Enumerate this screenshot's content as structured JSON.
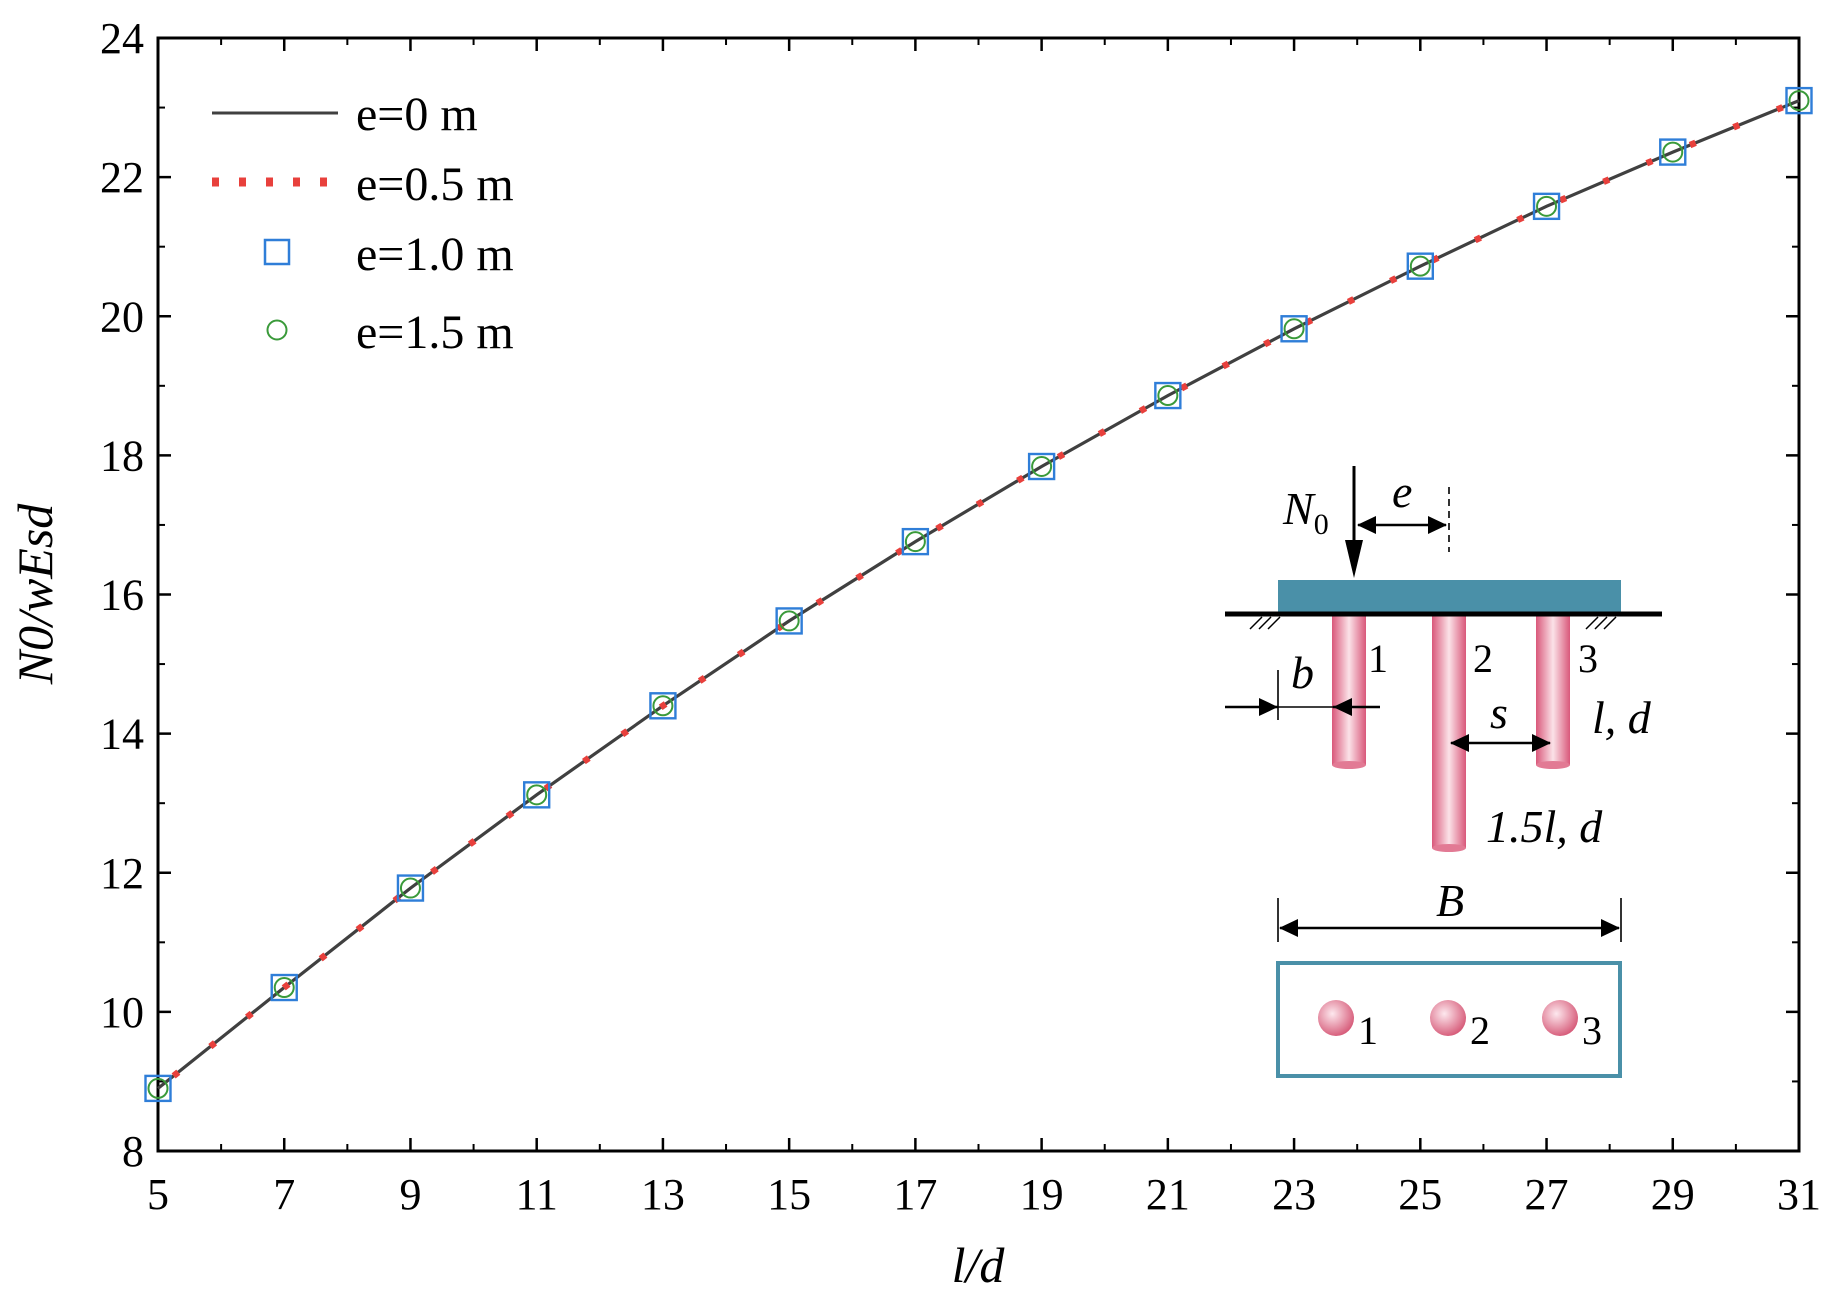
{
  "chart_data": {
    "type": "line",
    "xlabel": "l/d",
    "ylabel": "N0/wEsd",
    "xlim": [
      5,
      31
    ],
    "ylim": [
      8,
      24
    ],
    "x_ticks": [
      5,
      7,
      9,
      11,
      13,
      15,
      17,
      19,
      21,
      23,
      25,
      27,
      29,
      31
    ],
    "y_ticks": [
      8,
      10,
      12,
      14,
      16,
      18,
      20,
      22,
      24
    ],
    "grid": false,
    "legend": {
      "position": "top-left"
    },
    "series": [
      {
        "name": "e=0 m",
        "style": "solid-line",
        "color": "#404040",
        "x": [
          5,
          7,
          9,
          11,
          13,
          15,
          17,
          19,
          21,
          23,
          25,
          27,
          29,
          31
        ],
        "y": [
          8.9,
          10.35,
          11.78,
          13.12,
          14.4,
          15.62,
          16.76,
          17.84,
          18.86,
          19.82,
          20.72,
          21.58,
          22.36,
          23.1
        ]
      },
      {
        "name": "e=0.5 m",
        "style": "dotted-line",
        "color": "#e8403c",
        "x": [
          5,
          7,
          9,
          11,
          13,
          15,
          17,
          19,
          21,
          23,
          25,
          27,
          29,
          31
        ],
        "y": [
          8.9,
          10.35,
          11.78,
          13.12,
          14.4,
          15.62,
          16.76,
          17.84,
          18.86,
          19.82,
          20.72,
          21.58,
          22.36,
          23.1
        ]
      },
      {
        "name": "e=1.0 m",
        "style": "open-square",
        "color": "#2f7ed8",
        "x": [
          5,
          7,
          9,
          11,
          13,
          15,
          17,
          19,
          21,
          23,
          25,
          27,
          29,
          31
        ],
        "y": [
          8.9,
          10.35,
          11.78,
          13.12,
          14.4,
          15.62,
          16.76,
          17.84,
          18.86,
          19.82,
          20.72,
          21.58,
          22.36,
          23.1
        ]
      },
      {
        "name": "e=1.5 m",
        "style": "open-circle",
        "color": "#3a9a3a",
        "x": [
          5,
          7,
          9,
          11,
          13,
          15,
          17,
          19,
          21,
          23,
          25,
          27,
          29,
          31
        ],
        "y": [
          8.9,
          10.35,
          11.78,
          13.12,
          14.4,
          15.62,
          16.76,
          17.84,
          18.86,
          19.82,
          20.72,
          21.58,
          22.36,
          23.1
        ]
      }
    ]
  },
  "inset": {
    "load_label": "N",
    "load_subscript": "0",
    "eccentricity_label": "e",
    "edge_distance_label": "b",
    "spacing_label": "s",
    "width_label": "B",
    "short_pile_label": "l, d",
    "long_pile_label": "1.5l, d",
    "pile_labels": [
      "1",
      "2",
      "3"
    ],
    "cap_color": "#4a90a8",
    "pile_color": "#e88090"
  }
}
